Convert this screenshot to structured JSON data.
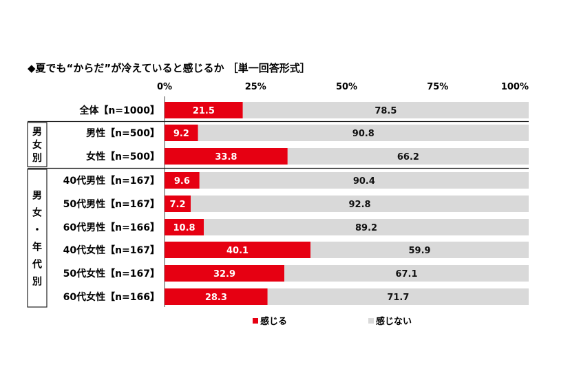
{
  "chart_data": {
    "type": "bar",
    "stacked": true,
    "orientation": "horizontal",
    "title": "◆夏でも“からだ”が冷えていると感じるか ［単一回答形式］",
    "xlim": [
      0,
      100
    ],
    "x_ticks": [
      "0%",
      "25%",
      "50%",
      "75%",
      "100%"
    ],
    "categories": [
      "全体【n=1000】",
      "男性【n=500】",
      "女性【n=500】",
      "40代男性【n=167】",
      "50代男性【n=167】",
      "60代男性【n=166】",
      "40代女性【n=167】",
      "50代女性【n=167】",
      "60代女性【n=166】"
    ],
    "groups": [
      {
        "label": "男女別",
        "rows": [
          1,
          2
        ]
      },
      {
        "label": "男女・年代別",
        "rows": [
          3,
          4,
          5,
          6,
          7,
          8
        ]
      }
    ],
    "series": [
      {
        "name": "感じる",
        "color": "#e60012",
        "values": [
          21.5,
          9.2,
          33.8,
          9.6,
          7.2,
          10.8,
          40.1,
          32.9,
          28.3
        ]
      },
      {
        "name": "感じない",
        "color": "#d9d9d9",
        "values": [
          78.5,
          90.8,
          66.2,
          90.4,
          92.8,
          89.2,
          59.9,
          67.1,
          71.7
        ]
      }
    ],
    "legend_position": "bottom"
  }
}
